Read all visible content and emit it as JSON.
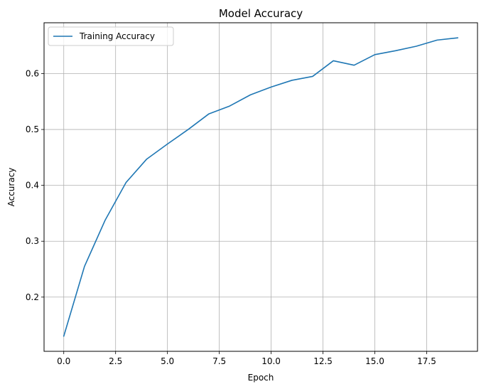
{
  "chart_data": {
    "type": "line",
    "title": "Model Accuracy",
    "xlabel": "Epoch",
    "ylabel": "Accuracy",
    "xlim": [
      -0.95,
      19.95
    ],
    "ylim": [
      0.103,
      0.691
    ],
    "xticks": [
      0.0,
      2.5,
      5.0,
      7.5,
      10.0,
      12.5,
      15.0,
      17.5
    ],
    "xtick_labels": [
      "0.0",
      "2.5",
      "5.0",
      "7.5",
      "10.0",
      "12.5",
      "15.0",
      "17.5"
    ],
    "yticks": [
      0.2,
      0.3,
      0.4,
      0.5,
      0.6
    ],
    "ytick_labels": [
      "0.2",
      "0.3",
      "0.4",
      "0.5",
      "0.6"
    ],
    "grid": true,
    "legend_position": "top-left",
    "series": [
      {
        "name": "Training Accuracy",
        "color": "#1f77b4",
        "x": [
          0,
          1,
          2,
          3,
          4,
          5,
          6,
          7,
          8,
          9,
          10,
          11,
          12,
          13,
          14,
          15,
          16,
          17,
          18,
          19
        ],
        "y": [
          0.13,
          0.255,
          0.338,
          0.405,
          0.447,
          0.474,
          0.5,
          0.528,
          0.542,
          0.562,
          0.576,
          0.588,
          0.595,
          0.623,
          0.615,
          0.634,
          0.641,
          0.649,
          0.66,
          0.664
        ]
      }
    ]
  }
}
